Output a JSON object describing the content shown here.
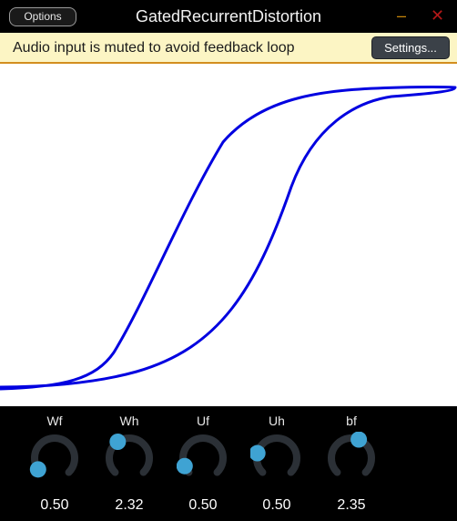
{
  "window": {
    "title": "GatedRecurrentDistortion",
    "options_label": "Options",
    "minimize_glyph": "–",
    "close_glyph": "✕"
  },
  "notice": {
    "text": "Audio input is muted to avoid feedback loop",
    "settings_label": "Settings..."
  },
  "colors": {
    "curve": "#0000e0",
    "knob_track": "#2b3036",
    "knob_thumb": "#3fa3d3",
    "notice_bg": "#fcf5c4",
    "notice_border": "#d38e1f"
  },
  "knobs": [
    {
      "label": "Wf",
      "value": "0.50",
      "fraction": 0.04
    },
    {
      "label": "Wh",
      "value": "2.32",
      "fraction": 0.37
    },
    {
      "label": "Uf",
      "value": "0.50",
      "fraction": 0.08
    },
    {
      "label": "Uh",
      "value": "0.50",
      "fraction": 0.22
    },
    {
      "label": "bf",
      "value": "2.35",
      "fraction": 0.58
    }
  ]
}
